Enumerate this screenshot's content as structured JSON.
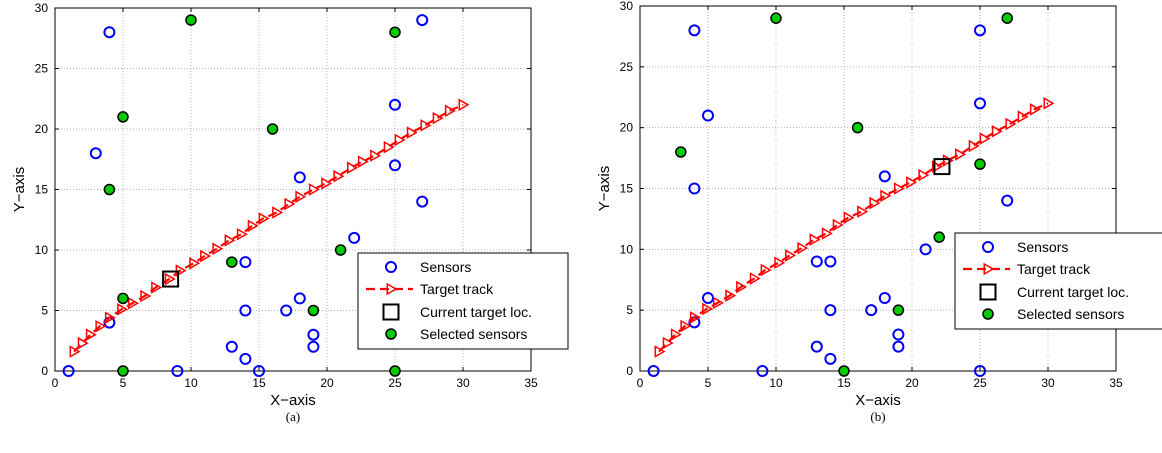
{
  "colors": {
    "sensor": "#0000ff",
    "selected_fill": "#00cc00",
    "track": "#ff0000",
    "current": "#000000",
    "grid": "#b3b3b3"
  },
  "chart_data": [
    {
      "type": "scatter",
      "caption": "(a)",
      "xlabel": "X−axis",
      "ylabel": "Y−axis",
      "xlim": [
        0,
        35
      ],
      "ylim": [
        0,
        30
      ],
      "xticks": [
        "0",
        "5",
        "10",
        "15",
        "20",
        "25",
        "30",
        "35"
      ],
      "yticks": [
        "0",
        "5",
        "10",
        "15",
        "20",
        "25",
        "30"
      ],
      "grid": true,
      "legend_position": "lower-right",
      "legend": [
        "Sensors",
        "Target track",
        "Current target loc.",
        "Selected sensors"
      ],
      "series": [
        {
          "name": "Sensors",
          "points": [
            [
              1,
              0
            ],
            [
              9,
              0
            ],
            [
              15,
              0
            ],
            [
              14,
              1
            ],
            [
              13,
              2
            ],
            [
              19,
              2
            ],
            [
              19,
              3
            ],
            [
              4,
              4
            ],
            [
              14,
              5
            ],
            [
              17,
              5
            ],
            [
              18,
              6
            ],
            [
              14,
              9
            ],
            [
              22,
              11
            ],
            [
              27,
              14
            ],
            [
              18,
              16
            ],
            [
              25,
              17
            ],
            [
              3,
              18
            ],
            [
              25,
              22
            ],
            [
              4,
              28
            ],
            [
              27,
              29
            ]
          ]
        },
        {
          "name": "Target track",
          "points": [
            [
              1.4,
              1.6
            ],
            [
              2.0,
              2.3
            ],
            [
              2.6,
              3.0
            ],
            [
              3.3,
              3.7
            ],
            [
              4.0,
              4.4
            ],
            [
              4.9,
              5.1
            ],
            [
              5.7,
              5.6
            ],
            [
              6.6,
              6.2
            ],
            [
              7.4,
              6.9
            ],
            [
              8.4,
              7.6
            ],
            [
              9.2,
              8.3
            ],
            [
              10.2,
              8.9
            ],
            [
              11.0,
              9.5
            ],
            [
              11.9,
              10.1
            ],
            [
              12.8,
              10.8
            ],
            [
              13.7,
              11.3
            ],
            [
              14.5,
              12.0
            ],
            [
              15.3,
              12.6
            ],
            [
              16.3,
              13.1
            ],
            [
              17.2,
              13.8
            ],
            [
              18.0,
              14.4
            ],
            [
              19.0,
              15.0
            ],
            [
              19.9,
              15.5
            ],
            [
              20.8,
              16.1
            ],
            [
              21.8,
              16.8
            ],
            [
              22.6,
              17.3
            ],
            [
              23.5,
              17.8
            ],
            [
              24.5,
              18.5
            ],
            [
              25.3,
              19.1
            ],
            [
              26.2,
              19.7
            ],
            [
              27.2,
              20.3
            ],
            [
              28.1,
              20.9
            ],
            [
              29.0,
              21.5
            ],
            [
              30.0,
              22.0
            ]
          ]
        },
        {
          "name": "Current target loc.",
          "points": [
            [
              8.5,
              7.6
            ]
          ]
        },
        {
          "name": "Selected sensors",
          "points": [
            [
              5,
              0
            ],
            [
              5,
              6
            ],
            [
              25,
              0
            ],
            [
              13,
              9
            ],
            [
              19,
              5
            ],
            [
              21,
              10
            ],
            [
              4,
              15
            ],
            [
              16,
              20
            ],
            [
              5,
              21
            ],
            [
              25,
              28
            ],
            [
              10,
              29
            ]
          ]
        }
      ]
    },
    {
      "type": "scatter",
      "caption": "(b)",
      "xlabel": "X−axis",
      "ylabel": "Y−axis",
      "xlim": [
        0,
        35
      ],
      "ylim": [
        0,
        30
      ],
      "xticks": [
        "0",
        "5",
        "10",
        "15",
        "20",
        "25",
        "30",
        "35"
      ],
      "yticks": [
        "0",
        "5",
        "10",
        "15",
        "20",
        "25",
        "30"
      ],
      "grid": true,
      "legend_position": "center-right",
      "legend": [
        "Sensors",
        "Target track",
        "Current target loc.",
        "Selected sensors"
      ],
      "series": [
        {
          "name": "Sensors",
          "points": [
            [
              1,
              0
            ],
            [
              9,
              0
            ],
            [
              25,
              0
            ],
            [
              14,
              1
            ],
            [
              13,
              2
            ],
            [
              19,
              2
            ],
            [
              19,
              3
            ],
            [
              4,
              4
            ],
            [
              14,
              5
            ],
            [
              17,
              5
            ],
            [
              5,
              6
            ],
            [
              18,
              6
            ],
            [
              13,
              9
            ],
            [
              14,
              9
            ],
            [
              21,
              10
            ],
            [
              27,
              14
            ],
            [
              4,
              15
            ],
            [
              18,
              16
            ],
            [
              5,
              21
            ],
            [
              25,
              22
            ],
            [
              4,
              28
            ],
            [
              25,
              28
            ]
          ]
        },
        {
          "name": "Target track",
          "points": [
            [
              1.4,
              1.6
            ],
            [
              2.0,
              2.3
            ],
            [
              2.6,
              3.0
            ],
            [
              3.3,
              3.7
            ],
            [
              4.0,
              4.4
            ],
            [
              4.9,
              5.1
            ],
            [
              5.7,
              5.6
            ],
            [
              6.6,
              6.2
            ],
            [
              7.4,
              6.9
            ],
            [
              8.4,
              7.6
            ],
            [
              9.2,
              8.3
            ],
            [
              10.2,
              8.9
            ],
            [
              11.0,
              9.5
            ],
            [
              11.9,
              10.1
            ],
            [
              12.8,
              10.8
            ],
            [
              13.7,
              11.3
            ],
            [
              14.5,
              12.0
            ],
            [
              15.3,
              12.6
            ],
            [
              16.3,
              13.1
            ],
            [
              17.2,
              13.8
            ],
            [
              18.0,
              14.4
            ],
            [
              19.0,
              15.0
            ],
            [
              19.9,
              15.5
            ],
            [
              20.8,
              16.1
            ],
            [
              21.8,
              16.8
            ],
            [
              22.6,
              17.3
            ],
            [
              23.5,
              17.8
            ],
            [
              24.5,
              18.5
            ],
            [
              25.3,
              19.1
            ],
            [
              26.2,
              19.7
            ],
            [
              27.2,
              20.3
            ],
            [
              28.1,
              20.9
            ],
            [
              29.0,
              21.5
            ],
            [
              30.0,
              22.0
            ]
          ]
        },
        {
          "name": "Current target loc.",
          "points": [
            [
              22.2,
              16.8
            ]
          ]
        },
        {
          "name": "Selected sensors",
          "points": [
            [
              15,
              0
            ],
            [
              19,
              5
            ],
            [
              22,
              11
            ],
            [
              25,
              17
            ],
            [
              3,
              18
            ],
            [
              16,
              20
            ],
            [
              10,
              29
            ],
            [
              27,
              29
            ]
          ]
        }
      ]
    }
  ]
}
